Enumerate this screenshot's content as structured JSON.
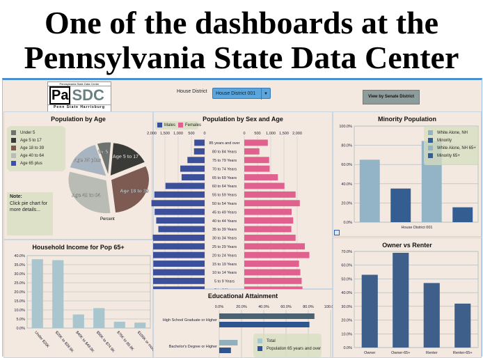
{
  "headline": {
    "line1": "One of the dashboards at the",
    "line2": "Pennsylvania State Data Center"
  },
  "header": {
    "logo_top": "Pennsylvania State Data Center",
    "logo_pa": "Pa",
    "logo_sdc": "SDC",
    "logo_bottom": "Penn State Harrisburg",
    "district_label": "House District",
    "district_value": "House District 001",
    "senate_button": "View by Senate District"
  },
  "colors": {
    "male": "#3b4f9a",
    "female": "#e0608e",
    "bar": "#a9c6cf",
    "owner": "#3d5f8a",
    "minority_white": "#93b4c6",
    "minority": "#345e92"
  },
  "pie": {
    "title": "Population by Age",
    "axis_label": "Percent",
    "note_title": "Note:",
    "note_text": "Click pie chart for more details...",
    "slices": [
      {
        "label": "Under 5",
        "value": 6,
        "color": "#6e7370"
      },
      {
        "label": "Age 5 to 17",
        "value": 17,
        "color": "#3a3b37"
      },
      {
        "label": "Age 18 to 39",
        "value": 30,
        "color": "#7d5a52"
      },
      {
        "label": "Age 40 to 64",
        "value": 31,
        "color": "#b9bcb5"
      },
      {
        "label": "Age 65 plus",
        "value": 16,
        "color": "#a8b5c0"
      }
    ],
    "legend_extra_color": "#3f4fa8"
  },
  "chart_data": [
    {
      "type": "bar",
      "title": "Population by Sex and Age",
      "orientation": "horizontal-pyramid",
      "xlim": [
        0,
        2000
      ],
      "ticks": [
        "2,000",
        "1,500",
        "1,000",
        "500",
        "0"
      ],
      "ticks_right": [
        "0",
        "500",
        "1,000",
        "1,500",
        "2,000"
      ],
      "legend": [
        "Males",
        "Females"
      ],
      "categories": [
        "85 years and over",
        "80 to 84 Years",
        "75 to 79 Years",
        "70 to 74 Years",
        "65 to 69 Years",
        "60 to 64 Years",
        "55 to 59 Years",
        "50 to 54 Years",
        "45 to 49 Years",
        "40 to 44 Years",
        "35 to 39 Years",
        "30 to 34 Years",
        "25 to 29 Years",
        "20 to 24 Years",
        "15 to 19 Years",
        "10 to 14 Years",
        "5 to 9 Years",
        "0 to 4 Years"
      ],
      "series": [
        {
          "name": "Males",
          "values": [
            390,
            400,
            650,
            920,
            870,
            1480,
            1900,
            2010,
            1890,
            1830,
            1750,
            1960,
            2170,
            2410,
            1940,
            2070,
            2070,
            2200
          ]
        },
        {
          "name": "Females",
          "values": [
            890,
            570,
            940,
            960,
            1270,
            1520,
            1940,
            2100,
            1790,
            1850,
            1780,
            1940,
            2290,
            2460,
            2070,
            2120,
            2170,
            2200
          ]
        }
      ]
    },
    {
      "type": "bar",
      "title": "Minority Population",
      "categories": [
        "House District 001"
      ],
      "ylim": [
        0,
        100
      ],
      "ticks": [
        "0.0%",
        "20.0%",
        "40.0%",
        "60.0%",
        "80.0%",
        "100.0%"
      ],
      "series": [
        {
          "name": "White Alone, NH",
          "values": [
            65
          ]
        },
        {
          "name": "Minority",
          "values": [
            35
          ]
        },
        {
          "name": "White Alone, NH 65+",
          "values": [
            84.5
          ]
        },
        {
          "name": "Minority 65+",
          "values": [
            15.5
          ]
        }
      ]
    },
    {
      "type": "bar",
      "title": "Household Income for Pop 65+",
      "ylim": [
        0,
        40
      ],
      "ticks": [
        "0.0%",
        "5.0%",
        "10.0%",
        "15.0%",
        "20.0%",
        "25.0%",
        "30.0%",
        "35.0%",
        "40.0%"
      ],
      "categories": [
        "Under $20K",
        "$20K to $39.9K",
        "$40K to $49.9K",
        "$50K to $74.9K",
        "$75K to 99.9K",
        "$100K or more"
      ],
      "values": [
        38,
        37.5,
        7.5,
        11,
        3.5,
        3
      ]
    },
    {
      "type": "bar",
      "title": "Educational Attainment",
      "orientation": "horizontal",
      "xlim": [
        0,
        100
      ],
      "ticks": [
        "0.0%",
        "20.0%",
        "40.0%",
        "60.0%",
        "80.0%",
        "100.0%"
      ],
      "categories": [
        "High School Graduate or Higher",
        "Bachelor's Degree or Higher"
      ],
      "series": [
        {
          "name": "Total",
          "values": [
            85.5,
            16.5
          ]
        },
        {
          "name": "Population 65 years and over",
          "values": [
            81,
            10.5
          ]
        }
      ]
    },
    {
      "type": "bar",
      "title": "Owner vs Renter",
      "ylim": [
        0,
        70
      ],
      "ticks": [
        "0.0%",
        "10.0%",
        "20.0%",
        "30.0%",
        "40.0%",
        "50.0%",
        "60.0%",
        "70.0%"
      ],
      "categories": [
        "Owner",
        "Owner-65+",
        "Renter",
        "Renter-65+"
      ],
      "values": [
        53,
        69,
        47,
        32
      ]
    }
  ]
}
